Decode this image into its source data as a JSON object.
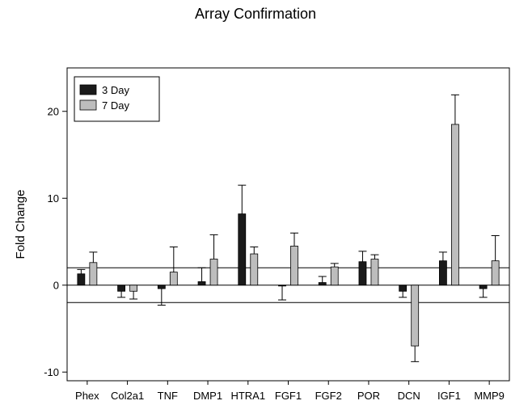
{
  "chart_data": {
    "type": "bar",
    "title": "Array Confirmation",
    "xlabel": "",
    "ylabel": "Fold Change",
    "ylim": [
      -11,
      25
    ],
    "yticks": [
      -10,
      0,
      10,
      20
    ],
    "reference_lines": [
      2,
      0,
      -2
    ],
    "legend_position": "top-left",
    "categories": [
      "Phex",
      "Col2a1",
      "TNF",
      "DMP1",
      "HTRA1",
      "FGF1",
      "FGF2",
      "POR",
      "DCN",
      "IGF1",
      "MMP9"
    ],
    "series": [
      {
        "name": "3 Day",
        "color": "#1a1a1a",
        "values": [
          1.3,
          -0.7,
          -0.4,
          0.4,
          8.2,
          -0.1,
          0.3,
          2.7,
          -0.7,
          2.8,
          -0.4
        ],
        "errors": [
          0.5,
          0.7,
          1.9,
          1.6,
          3.3,
          1.6,
          0.7,
          1.2,
          0.7,
          1.0,
          1.0
        ]
      },
      {
        "name": "7 Day",
        "color": "#bdbdbd",
        "values": [
          2.6,
          -0.7,
          1.5,
          3.0,
          3.6,
          4.5,
          2.1,
          3.0,
          -7.0,
          18.5,
          2.8
        ],
        "errors": [
          1.2,
          0.9,
          2.9,
          2.8,
          0.8,
          1.5,
          0.4,
          0.5,
          1.8,
          3.4,
          2.9
        ]
      }
    ]
  }
}
